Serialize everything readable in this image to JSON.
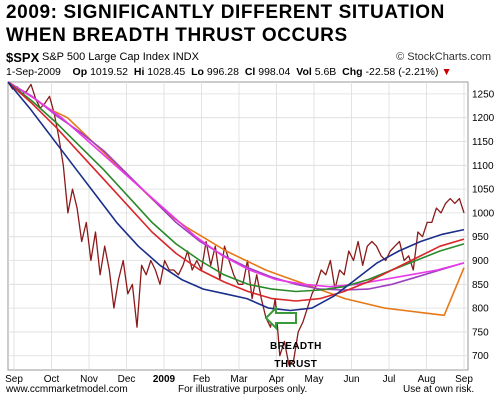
{
  "title_lines": [
    "2009:   SIGNIFICANTLY DIFFERENT SITUATION",
    "WHEN BREADTH THRUST OCCURS"
  ],
  "header": {
    "ticker": "$SPX",
    "index_name": "S&P 500 Large Cap Index INDX",
    "brand": "© StockCharts.com",
    "date": "1-Sep-2009",
    "op_label": "Op",
    "op": "1019.52",
    "hi_label": "Hi",
    "hi": "1028.45",
    "lo_label": "Lo",
    "lo": "996.28",
    "cl_label": "Cl",
    "cl": "998.04",
    "vol_label": "Vol",
    "vol": "5.6B",
    "chg_label": "Chg",
    "chg": "-22.58 (-2.21%)",
    "chg_arrow": "▼"
  },
  "annotation": {
    "line1": "BREADTH",
    "line2": "THRUST",
    "arrow_color": "#3a9a3a"
  },
  "footer": {
    "left": "www.ccmmarketmodel.com",
    "center": "For illustrative purposes only.",
    "right": "Use at own risk."
  },
  "chart_data": {
    "type": "line",
    "x_tick_labels": [
      "Sep",
      "Oct",
      "Nov",
      "Dec",
      "2009",
      "Feb",
      "Mar",
      "Apr",
      "May",
      "Jun",
      "Jul",
      "Aug",
      "Sep"
    ],
    "y_tick_labels": [
      "700",
      "750",
      "800",
      "850",
      "900",
      "950",
      "1000",
      "1050",
      "1100",
      "1150",
      "1200",
      "1250"
    ],
    "ylim": [
      670,
      1275
    ],
    "grid": true,
    "series": [
      {
        "kind": "price",
        "color": "#8b1a1a",
        "values": [
          1275,
          1260,
          1265,
          1250,
          1255,
          1270,
          1240,
          1220,
          1230,
          1245,
          1210,
          1160,
          1100,
          1000,
          1050,
          1010,
          940,
          980,
          900,
          960,
          870,
          930,
          880,
          800,
          860,
          900,
          830,
          850,
          760,
          890,
          870,
          900,
          880,
          850,
          900,
          880,
          880,
          870,
          890,
          920,
          880,
          900,
          880,
          940,
          890,
          930,
          860,
          930,
          900,
          870,
          850,
          850,
          900,
          820,
          870,
          820,
          780,
          760,
          820,
          700,
          730,
          680,
          690,
          750,
          770,
          800,
          830,
          850,
          880,
          870,
          900,
          840,
          880,
          870,
          920,
          900,
          940,
          890,
          930,
          940,
          930,
          910,
          900,
          920,
          930,
          940,
          900,
          910,
          880,
          960,
          950,
          980,
          980,
          1010,
          1000,
          1020,
          1030,
          1020,
          1030,
          1000
        ]
      },
      {
        "kind": "ma",
        "color": "#e67817",
        "values": [
          1275,
          1250,
          1220,
          1200,
          1160,
          1120,
          1080,
          1040,
          1000,
          970,
          945,
          920,
          900,
          880,
          865,
          850,
          835,
          820,
          810,
          800,
          795,
          790,
          785,
          885
        ]
      },
      {
        "kind": "ma",
        "color": "#a040c0",
        "values": [
          1275,
          1245,
          1205,
          1170,
          1130,
          1080,
          1030,
          980,
          940,
          910,
          885,
          865,
          850,
          840,
          838,
          840,
          850,
          865,
          880,
          895
        ]
      },
      {
        "kind": "ma",
        "color": "#e83ae8",
        "values": [
          1275,
          1240,
          1200,
          1150,
          1100,
          1050,
          1000,
          950,
          910,
          880,
          860,
          850,
          845,
          850,
          860,
          870,
          880,
          895
        ]
      },
      {
        "kind": "ma",
        "color": "#2a8a2a",
        "values": [
          1275,
          1235,
          1190,
          1140,
          1090,
          1035,
          980,
          935,
          900,
          870,
          850,
          840,
          835,
          838,
          845,
          860,
          880,
          900,
          920,
          935
        ]
      },
      {
        "kind": "ma",
        "color": "#d8262a",
        "values": [
          1275,
          1230,
          1180,
          1125,
          1070,
          1015,
          960,
          915,
          880,
          855,
          835,
          820,
          815,
          820,
          835,
          855,
          880,
          905,
          930,
          945
        ]
      },
      {
        "kind": "ma",
        "color": "#1a2e8a",
        "values": [
          1275,
          1220,
          1160,
          1100,
          1040,
          980,
          930,
          890,
          860,
          840,
          830,
          820,
          800,
          795,
          800,
          825,
          860,
          895,
          920,
          940,
          955,
          965
        ]
      }
    ]
  }
}
